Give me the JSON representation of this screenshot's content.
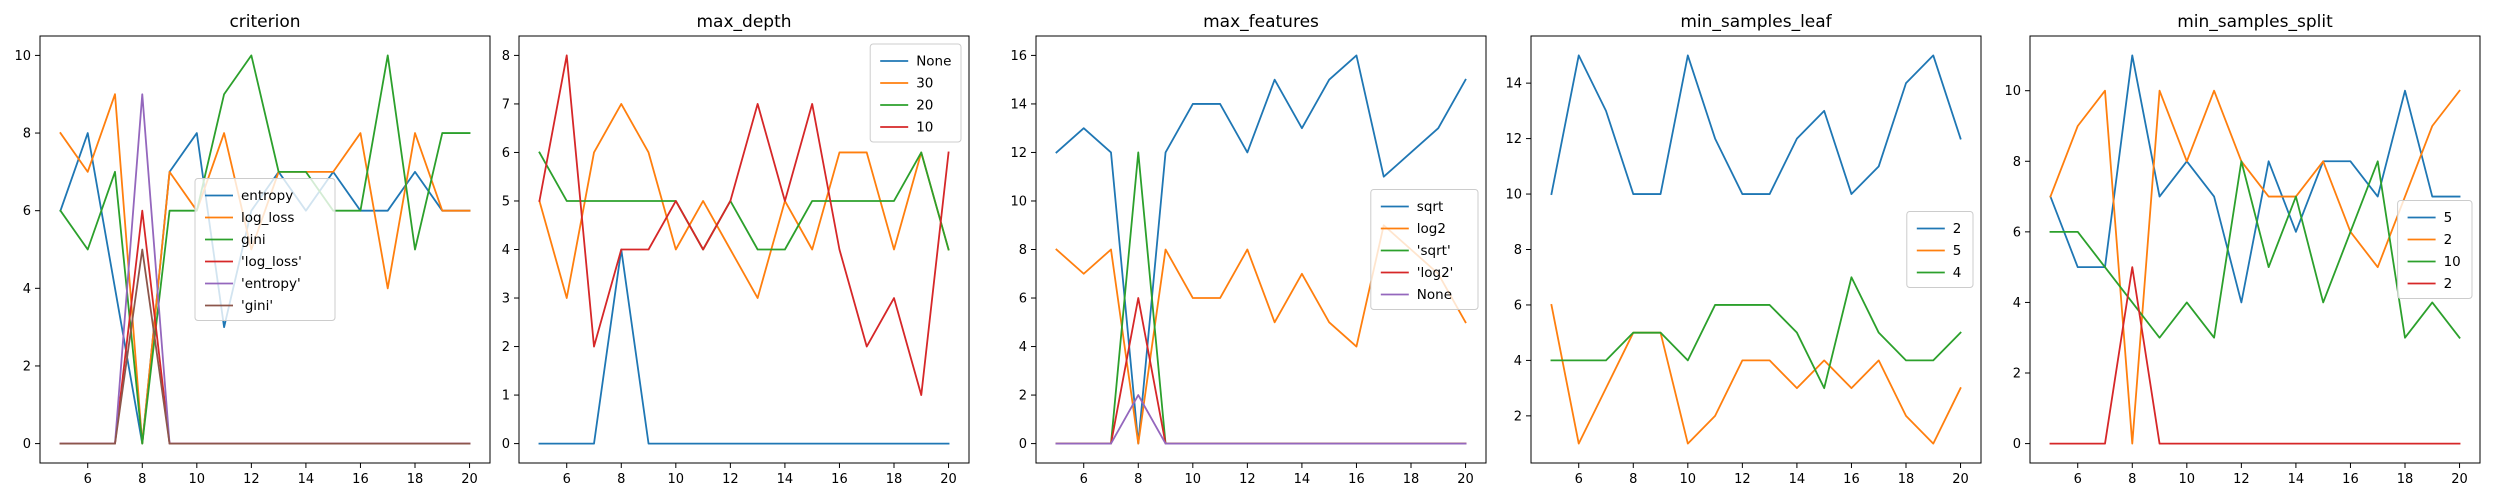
{
  "colors": [
    "#1f77b4",
    "#ff7f0e",
    "#2ca02c",
    "#d62728",
    "#9467bd",
    "#8c564b"
  ],
  "chart_data": [
    {
      "type": "line",
      "title": "criterion",
      "x": [
        5,
        6,
        7,
        8,
        9,
        10,
        11,
        12,
        13,
        14,
        15,
        16,
        17,
        18,
        19,
        20
      ],
      "xlim": [
        4.25,
        20.75
      ],
      "ylim": [
        -0.5,
        10.5
      ],
      "xticks": [
        6,
        8,
        10,
        12,
        14,
        16,
        18,
        20
      ],
      "yticks": [
        0,
        2,
        4,
        6,
        8,
        10
      ],
      "legend_loc": "center",
      "series": [
        {
          "name": "entropy",
          "values": [
            6,
            8,
            4,
            0,
            7,
            8,
            3,
            6,
            7,
            6,
            7,
            6,
            6,
            7,
            6,
            6
          ]
        },
        {
          "name": "log_loss",
          "values": [
            8,
            7,
            9,
            0,
            7,
            6,
            8,
            5,
            7,
            7,
            7,
            8,
            4,
            8,
            6,
            6
          ]
        },
        {
          "name": "gini",
          "values": [
            6,
            5,
            7,
            0,
            6,
            6,
            9,
            10,
            7,
            7,
            6,
            6,
            10,
            5,
            8,
            8
          ]
        },
        {
          "name": "'log_loss'",
          "values": [
            0,
            0,
            0,
            6,
            0,
            0,
            0,
            0,
            0,
            0,
            0,
            0,
            0,
            0,
            0,
            0
          ]
        },
        {
          "name": "'entropy'",
          "values": [
            0,
            0,
            0,
            9,
            0,
            0,
            0,
            0,
            0,
            0,
            0,
            0,
            0,
            0,
            0,
            0
          ]
        },
        {
          "name": "'gini'",
          "values": [
            0,
            0,
            0,
            5,
            0,
            0,
            0,
            0,
            0,
            0,
            0,
            0,
            0,
            0,
            0,
            0
          ]
        }
      ]
    },
    {
      "type": "line",
      "title": "max_depth",
      "x": [
        5,
        6,
        7,
        8,
        9,
        10,
        11,
        12,
        13,
        14,
        15,
        16,
        17,
        18,
        19,
        20
      ],
      "xlim": [
        4.25,
        20.75
      ],
      "ylim": [
        -0.4,
        8.4
      ],
      "xticks": [
        6,
        8,
        10,
        12,
        14,
        16,
        18,
        20
      ],
      "yticks": [
        0,
        1,
        2,
        3,
        4,
        5,
        6,
        7,
        8
      ],
      "legend_loc": "upper right",
      "series": [
        {
          "name": "None",
          "values": [
            0,
            0,
            0,
            4,
            0,
            0,
            0,
            0,
            0,
            0,
            0,
            0,
            0,
            0,
            0,
            0
          ]
        },
        {
          "name": "30",
          "values": [
            5,
            3,
            6,
            7,
            6,
            4,
            5,
            4,
            3,
            5,
            4,
            6,
            6,
            4,
            6,
            4
          ]
        },
        {
          "name": "20",
          "values": [
            6,
            5,
            5,
            5,
            5,
            5,
            4,
            5,
            4,
            4,
            5,
            5,
            5,
            5,
            6,
            4
          ]
        },
        {
          "name": "10",
          "values": [
            5,
            8,
            2,
            4,
            4,
            5,
            4,
            5,
            7,
            5,
            7,
            4,
            2,
            3,
            1,
            6
          ]
        }
      ]
    },
    {
      "type": "line",
      "title": "max_features",
      "x": [
        5,
        6,
        7,
        8,
        9,
        10,
        11,
        12,
        13,
        14,
        15,
        16,
        17,
        18,
        19,
        20
      ],
      "xlim": [
        4.25,
        20.75
      ],
      "ylim": [
        -0.8,
        16.8
      ],
      "xticks": [
        6,
        8,
        10,
        12,
        14,
        16,
        18,
        20
      ],
      "yticks": [
        0,
        2,
        4,
        6,
        8,
        10,
        12,
        14,
        16
      ],
      "legend_loc": "center right",
      "series": [
        {
          "name": "sqrt",
          "values": [
            12,
            13,
            12,
            0,
            12,
            14,
            14,
            12,
            15,
            13,
            15,
            16,
            11,
            12,
            13,
            15
          ]
        },
        {
          "name": "log2",
          "values": [
            8,
            7,
            8,
            0,
            8,
            6,
            6,
            8,
            5,
            7,
            5,
            4,
            9,
            8,
            7,
            5
          ]
        },
        {
          "name": "'sqrt'",
          "values": [
            0,
            0,
            0,
            12,
            0,
            0,
            0,
            0,
            0,
            0,
            0,
            0,
            0,
            0,
            0,
            0
          ]
        },
        {
          "name": "'log2'",
          "values": [
            0,
            0,
            0,
            6,
            0,
            0,
            0,
            0,
            0,
            0,
            0,
            0,
            0,
            0,
            0,
            0
          ]
        },
        {
          "name": "None",
          "values": [
            0,
            0,
            0,
            2,
            0,
            0,
            0,
            0,
            0,
            0,
            0,
            0,
            0,
            0,
            0,
            0
          ]
        }
      ]
    },
    {
      "type": "line",
      "title": "min_samples_leaf",
      "x": [
        5,
        6,
        7,
        8,
        9,
        10,
        11,
        12,
        13,
        14,
        15,
        16,
        17,
        18,
        19,
        20
      ],
      "xlim": [
        4.25,
        20.75
      ],
      "ylim": [
        0.3,
        15.7
      ],
      "xticks": [
        6,
        8,
        10,
        12,
        14,
        16,
        18,
        20
      ],
      "yticks": [
        2,
        4,
        6,
        8,
        10,
        12,
        14
      ],
      "legend_loc": "center right",
      "series": [
        {
          "name": "2",
          "values": [
            10,
            15,
            13,
            10,
            10,
            15,
            12,
            10,
            10,
            12,
            13,
            10,
            11,
            14,
            15,
            12
          ]
        },
        {
          "name": "5",
          "values": [
            6,
            1,
            3,
            5,
            5,
            1,
            2,
            4,
            4,
            3,
            4,
            3,
            4,
            2,
            1,
            3
          ]
        },
        {
          "name": "4",
          "values": [
            4,
            4,
            4,
            5,
            5,
            4,
            6,
            6,
            6,
            5,
            3,
            7,
            5,
            4,
            4,
            5
          ]
        }
      ]
    },
    {
      "type": "line",
      "title": "min_samples_split",
      "x": [
        5,
        6,
        7,
        8,
        9,
        10,
        11,
        12,
        13,
        14,
        15,
        16,
        17,
        18,
        19,
        20
      ],
      "xlim": [
        4.25,
        20.75
      ],
      "ylim": [
        -0.55,
        11.55
      ],
      "xticks": [
        6,
        8,
        10,
        12,
        14,
        16,
        18,
        20
      ],
      "yticks": [
        0,
        2,
        4,
        6,
        8,
        10
      ],
      "legend_loc": "center right",
      "series": [
        {
          "name": "5",
          "values": [
            7,
            5,
            5,
            11,
            7,
            8,
            7,
            4,
            8,
            6,
            8,
            8,
            7,
            10,
            7,
            7
          ]
        },
        {
          "name": "2",
          "values": [
            7,
            9,
            10,
            0,
            10,
            8,
            10,
            8,
            7,
            7,
            8,
            6,
            5,
            7,
            9,
            10
          ]
        },
        {
          "name": "10",
          "values": [
            6,
            6,
            5,
            4,
            3,
            4,
            3,
            8,
            5,
            7,
            4,
            6,
            8,
            3,
            4,
            3
          ]
        },
        {
          "name": "2",
          "values": [
            0,
            0,
            0,
            5,
            0,
            0,
            0,
            0,
            0,
            0,
            0,
            0,
            0,
            0,
            0,
            0
          ]
        }
      ]
    }
  ]
}
